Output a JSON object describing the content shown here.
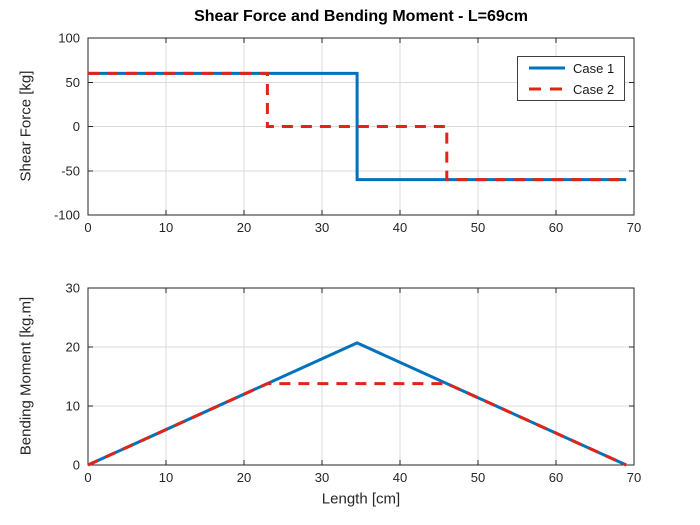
{
  "figure": {
    "title": "Shear Force and Bending Moment - L=69cm",
    "background": "#FFFFFF"
  },
  "colors": {
    "case1_blue": "#0072BD",
    "case2_red": "#E02418",
    "grid": "#DBDBDB",
    "axis": "#262626",
    "tick_text": "#262626"
  },
  "legend": {
    "entries": [
      {
        "label": "Case 1",
        "style": "solid",
        "color": "#0072BD"
      },
      {
        "label": "Case 2",
        "style": "dashed",
        "color": "#E02418"
      }
    ]
  },
  "chart_data": [
    {
      "type": "line",
      "id": "shear",
      "title": "Shear Force and Bending Moment - L=69cm",
      "xlabel": "",
      "ylabel": "Shear Force [kg]",
      "xlim": [
        0,
        70
      ],
      "ylim": [
        -100,
        100
      ],
      "xticks": [
        0,
        10,
        20,
        30,
        40,
        50,
        60,
        70
      ],
      "yticks": [
        -100,
        -50,
        0,
        50,
        100
      ],
      "grid": true,
      "legend_position": "northeast",
      "series": [
        {
          "name": "Case 1",
          "style": "solid",
          "color_ref": "case1_blue",
          "x": [
            0,
            34.5,
            34.5,
            69
          ],
          "y": [
            60,
            60,
            -60,
            -60
          ]
        },
        {
          "name": "Case 2",
          "style": "dashed",
          "color_ref": "case2_red",
          "x": [
            0,
            23,
            23,
            46,
            46,
            69
          ],
          "y": [
            60,
            60,
            0,
            0,
            -60,
            -60
          ]
        }
      ]
    },
    {
      "type": "line",
      "id": "moment",
      "xlabel": "Length [cm]",
      "ylabel": "Bending Moment [kg.m]",
      "xlim": [
        0,
        70
      ],
      "ylim": [
        0,
        30
      ],
      "xticks": [
        0,
        10,
        20,
        30,
        40,
        50,
        60,
        70
      ],
      "yticks": [
        0,
        10,
        20,
        30
      ],
      "grid": true,
      "series": [
        {
          "name": "Case 1",
          "style": "solid",
          "color_ref": "case1_blue",
          "x": [
            0,
            34.5,
            69
          ],
          "y": [
            0,
            20.7,
            0
          ]
        },
        {
          "name": "Case 2",
          "style": "dashed",
          "color_ref": "case2_red",
          "x": [
            0,
            23,
            46,
            69
          ],
          "y": [
            0,
            13.8,
            13.8,
            0
          ]
        }
      ]
    }
  ]
}
